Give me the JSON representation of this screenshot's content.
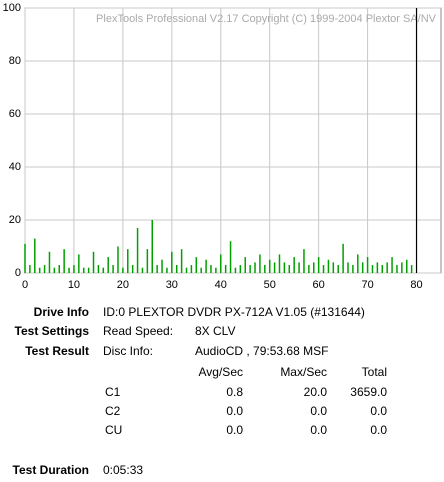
{
  "chart_data": {
    "type": "bar",
    "watermark": "PlexTools Professional V2.17 Copyright (C) 1999-2004 Plextor SA/NV",
    "x": [
      0,
      1,
      2,
      3,
      4,
      5,
      6,
      7,
      8,
      9,
      10,
      11,
      12,
      13,
      14,
      15,
      16,
      17,
      18,
      19,
      20,
      21,
      22,
      23,
      24,
      25,
      26,
      27,
      28,
      29,
      30,
      31,
      32,
      33,
      34,
      35,
      36,
      37,
      38,
      39,
      40,
      41,
      42,
      43,
      44,
      45,
      46,
      47,
      48,
      49,
      50,
      51,
      52,
      53,
      54,
      55,
      56,
      57,
      58,
      59,
      60,
      61,
      62,
      63,
      64,
      65,
      66,
      67,
      68,
      69,
      70,
      71,
      72,
      73,
      74,
      75,
      76,
      77,
      78,
      79
    ],
    "series": [
      {
        "name": "C1",
        "color": "#00a000",
        "values": [
          11,
          3,
          13,
          2,
          3,
          8,
          2,
          3,
          9,
          2,
          3,
          7,
          2,
          2,
          8,
          3,
          2,
          6,
          3,
          10,
          2,
          9,
          3,
          17,
          2,
          9,
          20,
          3,
          5,
          2,
          8,
          3,
          9,
          2,
          3,
          6,
          2,
          5,
          3,
          2,
          7,
          3,
          12,
          2,
          3,
          6,
          3,
          4,
          7,
          3,
          5,
          4,
          7,
          4,
          3,
          6,
          4,
          9,
          3,
          4,
          6,
          3,
          5,
          4,
          3,
          11,
          4,
          3,
          7,
          4,
          6,
          3,
          4,
          3,
          4,
          6,
          3,
          4,
          5,
          3
        ]
      }
    ],
    "xlim": [
      0,
      85
    ],
    "ylim": [
      0,
      100
    ],
    "xticks": [
      0,
      10,
      20,
      30,
      40,
      50,
      60,
      70,
      80
    ],
    "yticks": [
      0,
      20,
      40,
      60,
      80,
      100
    ],
    "end_line": 80,
    "grid": true
  },
  "info": {
    "drive_label": "Drive Info",
    "drive_value": "ID:0 PLEXTOR DVDR PX-712A V1.05 (#131644)",
    "settings_label": "Test Settings",
    "speed_label": "Read Speed:",
    "speed_value": "8X CLV",
    "result_label": "Test Result",
    "disc_label": "Disc Info:",
    "disc_value": "AudioCD , 79:53.68 MSF",
    "columns": [
      "Avg/Sec",
      "Max/Sec",
      "Total"
    ],
    "rows": [
      [
        "C1",
        "0.8",
        "20.0",
        "3659.0"
      ],
      [
        "C2",
        "0.0",
        "0.0",
        "0.0"
      ],
      [
        "CU",
        "0.0",
        "0.0",
        "0.0"
      ]
    ],
    "duration_label": "Test Duration",
    "duration_value": "0:05:33"
  }
}
